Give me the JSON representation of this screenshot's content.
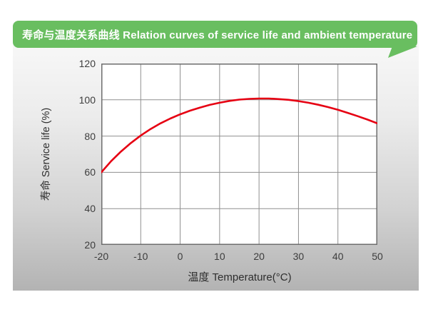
{
  "banner": {
    "title": "寿命与温度关系曲线 Relation curves of service life and ambient temperature",
    "bg_color": "#69be60",
    "text_color": "#ffffff"
  },
  "colors": {
    "curve_red": "#e60012",
    "grid": "#8f8f8f",
    "frame": "#6e6e6e",
    "panel_gradient_top": "#fbfbfb",
    "panel_gradient_bottom": "#b3b3b3",
    "tick_text": "#3d3d3d"
  },
  "chart_data": {
    "type": "line",
    "title": "寿命与温度关系曲线 Relation curves of service life and ambient temperature",
    "xlabel": "温度 Temperature(°C)",
    "ylabel": "寿命 Service life (%)",
    "xlim": [
      -20,
      50
    ],
    "ylim": [
      20,
      120
    ],
    "x_ticks": [
      -20,
      -10,
      0,
      10,
      20,
      30,
      40,
      50
    ],
    "y_ticks": [
      20,
      40,
      60,
      80,
      100,
      120
    ],
    "grid": true,
    "legend": false,
    "series": [
      {
        "name": "service-life",
        "color": "#e60012",
        "values_at_x_ticks": [
          60,
          80.3,
          92,
          98.4,
          100.7,
          99.3,
          94.5,
          87
        ],
        "points": [
          [
            -20,
            60
          ],
          [
            -17.5,
            66.2
          ],
          [
            -15,
            71.5
          ],
          [
            -12.5,
            76.2
          ],
          [
            -10,
            80.3
          ],
          [
            -7.5,
            83.9
          ],
          [
            -5,
            87
          ],
          [
            -2.5,
            89.7
          ],
          [
            0,
            92
          ],
          [
            2.5,
            94
          ],
          [
            5,
            95.7
          ],
          [
            7.5,
            97.2
          ],
          [
            10,
            98.4
          ],
          [
            12.5,
            99.4
          ],
          [
            15,
            100.1
          ],
          [
            17.5,
            100.5
          ],
          [
            20,
            100.7
          ],
          [
            22.5,
            100.7
          ],
          [
            25,
            100.4
          ],
          [
            27.5,
            100
          ],
          [
            30,
            99.3
          ],
          [
            32.5,
            98.4
          ],
          [
            35,
            97.3
          ],
          [
            37.5,
            96
          ],
          [
            40,
            94.5
          ],
          [
            42.5,
            92.8
          ],
          [
            45,
            91
          ],
          [
            47.5,
            89.1
          ],
          [
            50,
            87
          ]
        ]
      }
    ]
  }
}
